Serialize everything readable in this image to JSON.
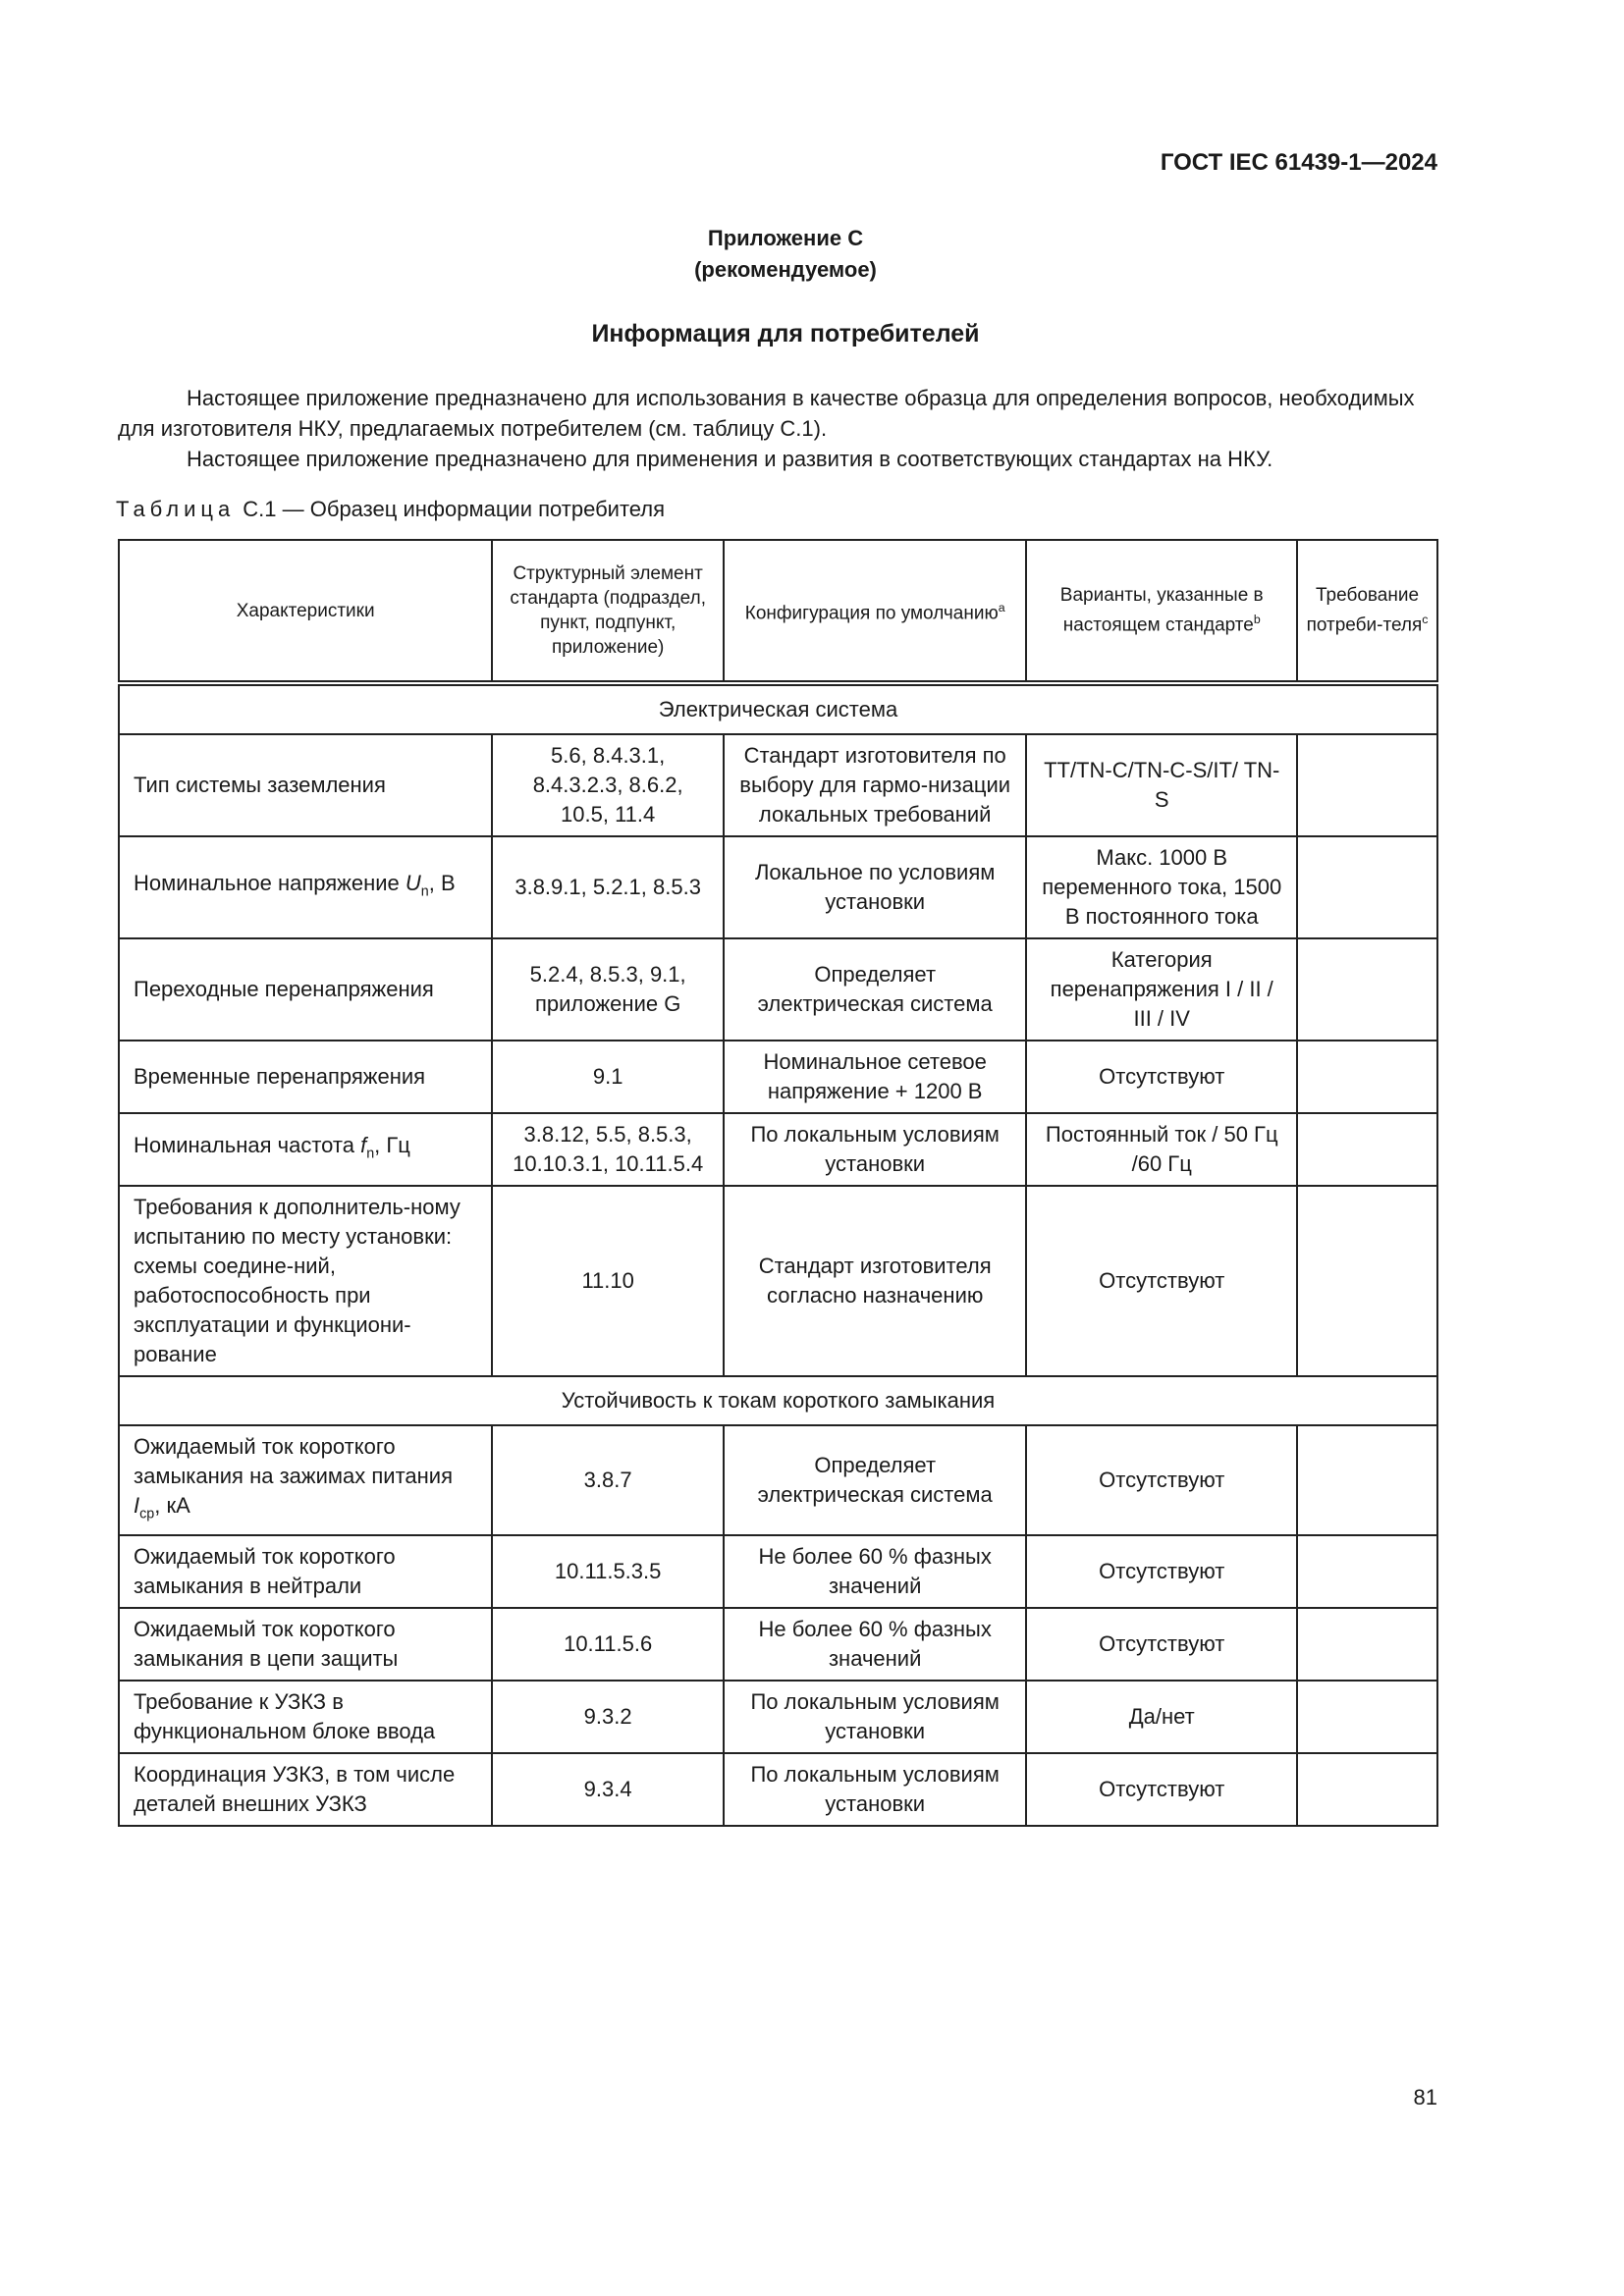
{
  "header": {
    "code": "ГОСТ IEC 61439-1—2024"
  },
  "appendix": {
    "title": "Приложение С",
    "note": "(рекомендуемое)"
  },
  "heading": "Информация для потребителей",
  "paragraphs": [
    "Настоящее приложение предназначено для использования в качестве образца для определения вопросов, необходимых для изготовителя НКУ, предлагаемых потребителем (см.  таблицу С.1).",
    "Настоящее приложение предназначено для применения и развития в соответствующих стандартах на НКУ."
  ],
  "table": {
    "caption": {
      "label": "Таблица",
      "text": "С.1 — Образец информации потребителя"
    },
    "columns": [
      "Характеристики",
      "Структурный элемент стандарта (подраздел, пункт, подпункт, приложение)",
      [
        "Конфигурация по умолчанию",
        "a"
      ],
      [
        "Варианты, указанные в настоящем стандарте",
        "b"
      ],
      [
        "Требование потреби-теля",
        "c"
      ]
    ],
    "sections": [
      {
        "title": "Электрическая система",
        "rows": [
          [
            "Тип системы заземления",
            "5.6, 8.4.3.1, 8.4.3.2.3, 8.6.2, 10.5, 11.4",
            "Стандарт изготовителя по выбору для гармо-низации локальных требований",
            "TT/TN-C/TN-C-S/IT/ TN-S"
          ],
          [
            [
              "Номинальное напряжение ",
              "U",
              "n",
              ", В"
            ],
            "3.8.9.1, 5.2.1, 8.5.3",
            "Локальное по условиям установки",
            "Макс. 1000 В переменного тока, 1500 В постоянного тока"
          ],
          [
            "Переходные перенапряжения",
            "5.2.4, 8.5.3, 9.1, приложение G",
            "Определяет электрическая система",
            "Категория перенапряжения I / II / III / IV"
          ],
          [
            "Временные перенапряжения",
            "9.1",
            "Номинальное сетевое напряжение + 1200 В",
            "Отсутствуют"
          ],
          [
            [
              "Номинальная частота ",
              "f",
              "n",
              ", Гц"
            ],
            "3.8.12, 5.5, 8.5.3, 10.10.3.1, 10.11.5.4",
            "По локальным условиям установки",
            "Постоянный ток / 50 Гц /60 Гц"
          ],
          [
            "Требования к дополнитель-ному испытанию по месту установки: схемы соедине-ний, работоспособность при эксплуатации и функциони-рование",
            "11.10",
            "Стандарт изготовителя согласно назначению",
            "Отсутствуют"
          ]
        ]
      },
      {
        "title": "Устойчивость к токам короткого замыкания",
        "rows": [
          [
            [
              "Ожидаемый ток короткого замыкания на зажимах питания ",
              "I",
              "ср",
              ", кА"
            ],
            "3.8.7",
            "Определяет электрическая система",
            "Отсутствуют"
          ],
          [
            "Ожидаемый ток короткого замыкания в нейтрали",
            "10.11.5.3.5",
            "Не более 60 % фазных значений",
            "Отсутствуют"
          ],
          [
            "Ожидаемый ток короткого замыкания в цепи защиты",
            "10.11.5.6",
            "Не более 60 % фазных значений",
            "Отсутствуют"
          ],
          [
            "Требование к УЗКЗ в функциональном блоке ввода",
            "9.3.2",
            "По локальным условиям установки",
            "Да/нет"
          ],
          [
            "Координация УЗКЗ, в том числе деталей внешних УЗКЗ",
            "9.3.4",
            "По локальным условиям установки",
            "Отсутствуют"
          ]
        ]
      }
    ]
  },
  "page_number": "81"
}
